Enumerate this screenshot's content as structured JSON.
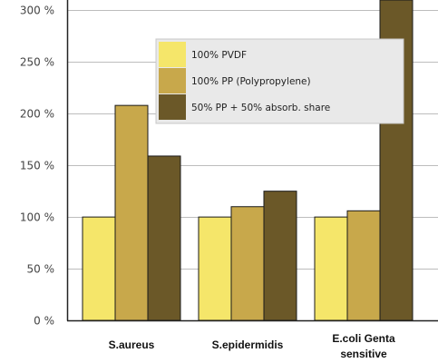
{
  "chart_data": {
    "type": "bar",
    "title": "",
    "xlabel": "",
    "ylabel": "",
    "ylim": [
      0,
      310
    ],
    "y_ticks": [
      0,
      50,
      100,
      150,
      200,
      250,
      300
    ],
    "y_tick_labels": [
      "0 %",
      "50 %",
      "100 %",
      "150 %",
      "200 %",
      "250 %",
      "300 %"
    ],
    "grid": true,
    "legend_position": "top-right",
    "categories": [
      [
        "S.aureus"
      ],
      [
        "S.epidermidis"
      ],
      [
        "E.coli Genta",
        "sensitive"
      ]
    ],
    "series": [
      {
        "name": "100% PVDF",
        "color": "#f5e66a",
        "values": [
          100,
          100,
          100
        ]
      },
      {
        "name": "100% PP (Polypropylene)",
        "color": "#c8a84b",
        "values": [
          208,
          110,
          106
        ]
      },
      {
        "name": "50% PP + 50% absorb. share",
        "color": "#6b5828",
        "values": [
          159,
          125,
          310
        ]
      }
    ]
  }
}
